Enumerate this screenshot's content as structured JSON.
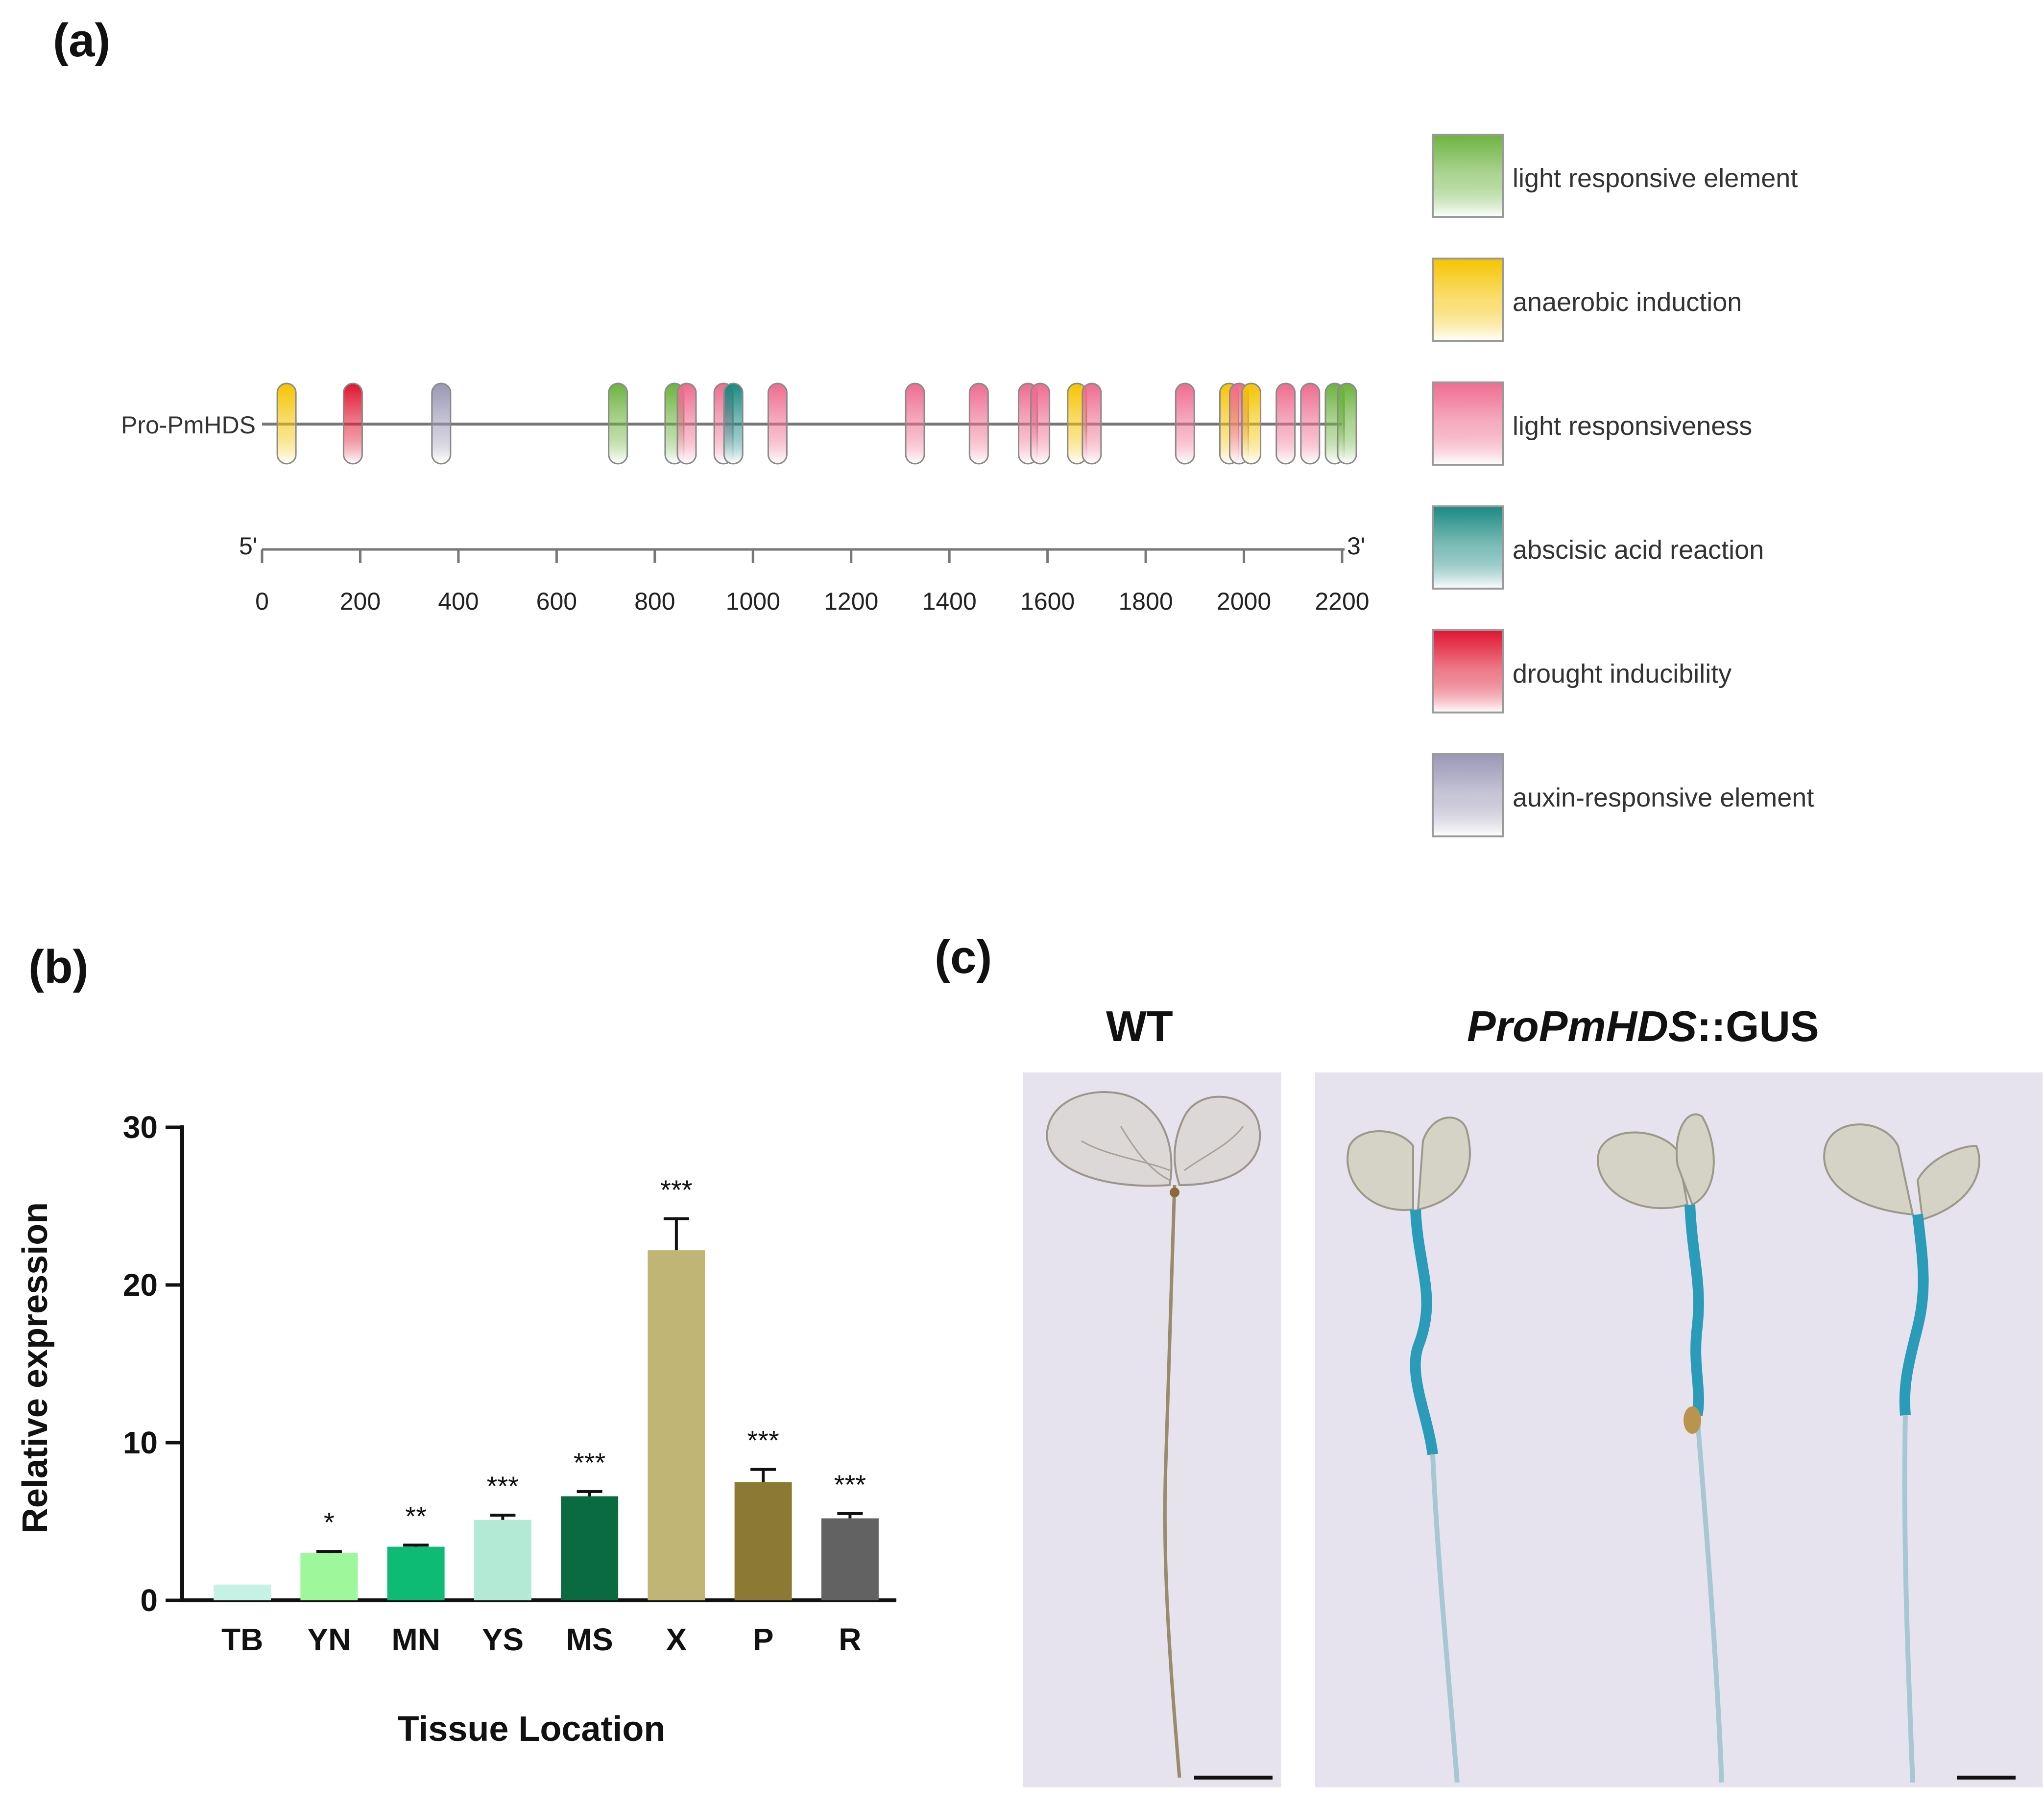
{
  "panel_a": {
    "label": "(a)",
    "sequence_name": "Pro-PmHDS",
    "end5": "5'",
    "end3": "3'",
    "axis_ticks": [
      "0",
      "200",
      "400",
      "600",
      "800",
      "1000",
      "1200",
      "1400",
      "1600",
      "1800",
      "2000",
      "2200"
    ],
    "axis_max": 2200,
    "legend": [
      {
        "key": "light_resp_elem",
        "label": "light responsive element",
        "color": "#6db33f"
      },
      {
        "key": "anaerobic",
        "label": "anaerobic induction",
        "color": "#f5c400"
      },
      {
        "key": "light_resp",
        "label": "light responsiveness",
        "color": "#ee6c8f"
      },
      {
        "key": "aba",
        "label": "abscisic acid reaction",
        "color": "#1a8a82"
      },
      {
        "key": "drought",
        "label": "drought inducibility",
        "color": "#e01530"
      },
      {
        "key": "auxin",
        "label": "auxin-responsive element",
        "color": "#9a97b5"
      }
    ],
    "elements": [
      {
        "pos": 50,
        "type": "anaerobic"
      },
      {
        "pos": 185,
        "type": "drought"
      },
      {
        "pos": 365,
        "type": "auxin"
      },
      {
        "pos": 725,
        "type": "light_resp_elem"
      },
      {
        "pos": 840,
        "type": "light_resp_elem"
      },
      {
        "pos": 865,
        "type": "light_resp"
      },
      {
        "pos": 940,
        "type": "light_resp"
      },
      {
        "pos": 960,
        "type": "aba"
      },
      {
        "pos": 1050,
        "type": "light_resp"
      },
      {
        "pos": 1330,
        "type": "light_resp"
      },
      {
        "pos": 1460,
        "type": "light_resp"
      },
      {
        "pos": 1560,
        "type": "light_resp"
      },
      {
        "pos": 1585,
        "type": "light_resp"
      },
      {
        "pos": 1660,
        "type": "anaerobic"
      },
      {
        "pos": 1690,
        "type": "light_resp"
      },
      {
        "pos": 1880,
        "type": "light_resp"
      },
      {
        "pos": 1970,
        "type": "anaerobic"
      },
      {
        "pos": 1990,
        "type": "light_resp"
      },
      {
        "pos": 2015,
        "type": "anaerobic"
      },
      {
        "pos": 2085,
        "type": "light_resp"
      },
      {
        "pos": 2135,
        "type": "light_resp"
      },
      {
        "pos": 2185,
        "type": "light_resp_elem"
      },
      {
        "pos": 2210,
        "type": "light_resp_elem"
      }
    ]
  },
  "panel_b": {
    "label": "(b)"
  },
  "chart_data": {
    "type": "bar",
    "title": "",
    "xlabel": "Tissue Location",
    "ylabel": "Relative expression",
    "ylim": [
      0,
      30
    ],
    "yticks": [
      "0",
      "10",
      "20",
      "30"
    ],
    "categories": [
      "TB",
      "YN",
      "MN",
      "YS",
      "MS",
      "X",
      "P",
      "R"
    ],
    "values": [
      1.0,
      3.0,
      3.4,
      5.1,
      6.6,
      22.2,
      7.5,
      5.2
    ],
    "errors": [
      0.0,
      0.1,
      0.1,
      0.3,
      0.3,
      2.0,
      0.8,
      0.3
    ],
    "significance": [
      "",
      "*",
      "**",
      "***",
      "***",
      "***",
      "***",
      "***"
    ],
    "colors": [
      "#c4f2e4",
      "#9ef79a",
      "#0dbb75",
      "#b2ead6",
      "#0b6b40",
      "#c1b576",
      "#8c7a34",
      "#626262"
    ]
  },
  "panel_c": {
    "label": "(c)",
    "wt_title": "WT",
    "gus_title_italic": "ProPmHDS",
    "gus_title_rest": "::GUS"
  }
}
